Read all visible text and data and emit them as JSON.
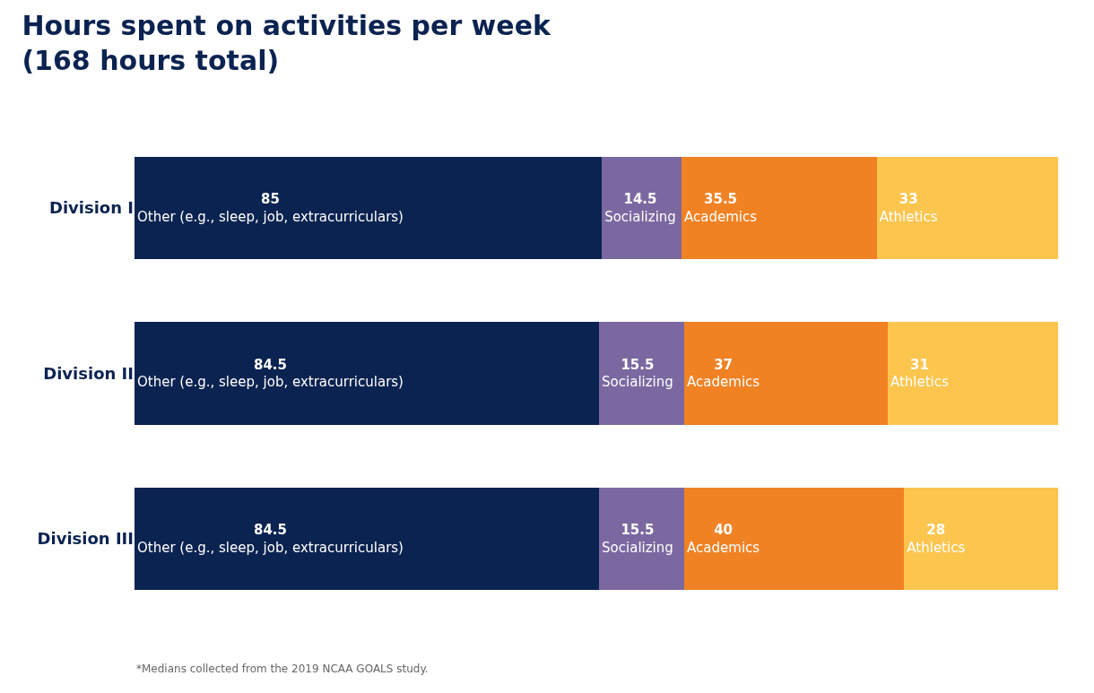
{
  "chart_data": {
    "type": "bar",
    "orientation": "horizontal",
    "stacked": true,
    "title": "Hours spent on activities per week\n(168 hours total)",
    "categories": [
      "Division I",
      "Division II",
      "Division III"
    ],
    "series": [
      {
        "name": "Other (e.g., sleep, job, extracurriculars)",
        "color": "#0b2350",
        "values": [
          85,
          84.5,
          84.5
        ]
      },
      {
        "name": "Socializing",
        "color": "#7b68a0",
        "values": [
          14.5,
          15.5,
          15.5
        ]
      },
      {
        "name": "Academics",
        "color": "#f08224",
        "values": [
          35.5,
          37,
          40
        ]
      },
      {
        "name": "Athletics",
        "color": "#fcc54e",
        "values": [
          33,
          31,
          28
        ]
      }
    ],
    "xlim": [
      0,
      168
    ],
    "data_labels": true,
    "legend": false,
    "tick_labels": "y",
    "annotations": [
      "*Medians collected from the 2019 NCAA GOALS study."
    ]
  }
}
